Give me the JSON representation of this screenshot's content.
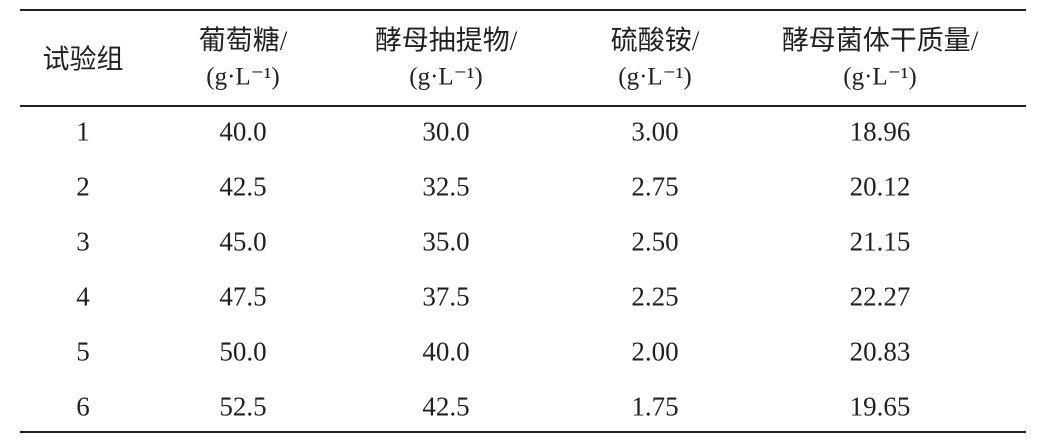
{
  "table": {
    "header": [
      {
        "name": "试验组"
      },
      {
        "name": "葡萄糖/",
        "unit": "(g·L⁻¹)"
      },
      {
        "name": "酵母抽提物/",
        "unit": "(g·L⁻¹)"
      },
      {
        "name": "硫酸铵/",
        "unit": "(g·L⁻¹)"
      },
      {
        "name": "酵母菌体干质量/",
        "unit": "(g·L⁻¹)"
      }
    ],
    "rows": [
      [
        "1",
        "40.0",
        "30.0",
        "3.00",
        "18.96"
      ],
      [
        "2",
        "42.5",
        "32.5",
        "2.75",
        "20.12"
      ],
      [
        "3",
        "45.0",
        "35.0",
        "2.50",
        "21.15"
      ],
      [
        "4",
        "47.5",
        "37.5",
        "2.25",
        "22.27"
      ],
      [
        "5",
        "50.0",
        "40.0",
        "2.00",
        "20.83"
      ],
      [
        "6",
        "52.5",
        "42.5",
        "1.75",
        "19.65"
      ]
    ]
  }
}
